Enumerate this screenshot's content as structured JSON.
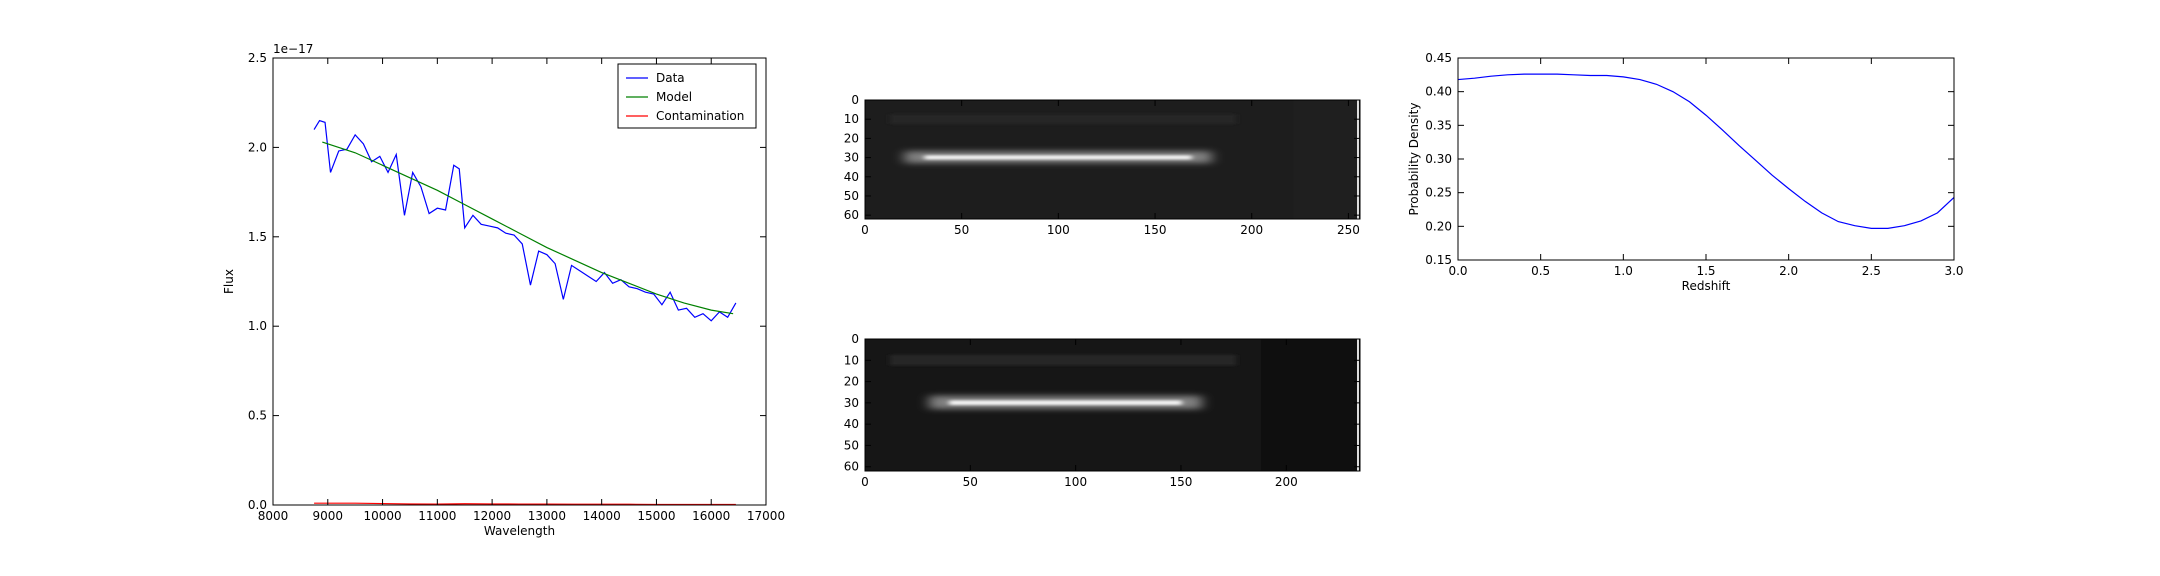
{
  "chart_data": [
    {
      "type": "line",
      "xlabel": "Wavelength",
      "ylabel": "Flux",
      "offset_text": "1e−17",
      "xlim": [
        8000,
        17000
      ],
      "xticks": [
        8000,
        9000,
        10000,
        11000,
        12000,
        13000,
        14000,
        15000,
        16000,
        17000
      ],
      "ylim": [
        0,
        2.5
      ],
      "yticks": [
        {
          "value": 0,
          "label": "0.0"
        },
        0.5,
        {
          "value": 1,
          "label": "1.0"
        },
        1.5,
        {
          "value": 2,
          "label": "2.0"
        },
        2.5
      ],
      "legend": "upper right",
      "series": [
        {
          "name": "Data",
          "color": "#0000ff",
          "x": [
            8750,
            8850,
            8950,
            9050,
            9200,
            9350,
            9500,
            9650,
            9800,
            9950,
            10100,
            10250,
            10400,
            10550,
            10700,
            10850,
            11000,
            11150,
            11300,
            11400,
            11500,
            11650,
            11800,
            11950,
            12100,
            12250,
            12400,
            12550,
            12700,
            12850,
            13000,
            13150,
            13300,
            13450,
            13600,
            13750,
            13900,
            14050,
            14200,
            14350,
            14500,
            14650,
            14800,
            14950,
            15100,
            15250,
            15400,
            15550,
            15700,
            15850,
            16000,
            16150,
            16300,
            16450
          ],
          "values": [
            2.1,
            2.15,
            2.14,
            1.86,
            1.98,
            1.99,
            2.07,
            2.02,
            1.92,
            1.95,
            1.86,
            1.96,
            1.62,
            1.86,
            1.78,
            1.63,
            1.66,
            1.65,
            1.9,
            1.88,
            1.55,
            1.62,
            1.57,
            1.56,
            1.55,
            1.52,
            1.51,
            1.46,
            1.23,
            1.42,
            1.4,
            1.35,
            1.15,
            1.34,
            1.31,
            1.28,
            1.25,
            1.3,
            1.24,
            1.26,
            1.22,
            1.21,
            1.19,
            1.18,
            1.12,
            1.19,
            1.09,
            1.1,
            1.05,
            1.07,
            1.03,
            1.08,
            1.05,
            1.13
          ]
        },
        {
          "name": "Model",
          "color": "#008000",
          "x": [
            8900,
            9500,
            10000,
            10500,
            11000,
            11500,
            12000,
            12500,
            13000,
            13500,
            14000,
            14500,
            15000,
            15500,
            16000,
            16400
          ],
          "values": [
            2.03,
            1.97,
            1.9,
            1.83,
            1.76,
            1.68,
            1.6,
            1.52,
            1.44,
            1.37,
            1.3,
            1.24,
            1.18,
            1.13,
            1.09,
            1.07
          ]
        },
        {
          "name": "Contamination",
          "color": "#ff0000",
          "x": [
            8750,
            9500,
            10000,
            10500,
            11000,
            11500,
            12000,
            12500,
            13000,
            13500,
            14000,
            14500,
            15000,
            15500,
            16000,
            16450
          ],
          "values": [
            0.01,
            0.01,
            0.008,
            0.006,
            0.005,
            0.007,
            0.006,
            0.005,
            0.005,
            0.004,
            0.004,
            0.004,
            0.003,
            0.003,
            0.003,
            0.003
          ]
        }
      ]
    },
    {
      "type": "image",
      "xlim": [
        0,
        256
      ],
      "xticks": [
        0,
        50,
        100,
        150,
        200,
        250
      ],
      "ylim": [
        62,
        0
      ],
      "yticks": [
        0,
        10,
        20,
        30,
        40,
        50,
        60
      ]
    },
    {
      "type": "image",
      "xlim": [
        0,
        235
      ],
      "xticks": [
        0,
        50,
        100,
        150,
        200
      ],
      "ylim": [
        62,
        0
      ],
      "yticks": [
        0,
        10,
        20,
        30,
        40,
        50,
        60
      ]
    },
    {
      "type": "line",
      "xlabel": "Redshift",
      "ylabel": "Probability Density",
      "xlim": [
        0,
        3
      ],
      "xticks": [
        {
          "value": 0,
          "label": "0.0"
        },
        0.5,
        {
          "value": 1,
          "label": "1.0"
        },
        1.5,
        {
          "value": 2,
          "label": "2.0"
        },
        2.5,
        {
          "value": 3,
          "label": "3.0"
        }
      ],
      "ylim": [
        0.15,
        0.45
      ],
      "yticks": [
        0.15,
        {
          "value": 0.2,
          "label": "0.20"
        },
        0.25,
        {
          "value": 0.3,
          "label": "0.30"
        },
        0.35,
        {
          "value": 0.4,
          "label": "0.40"
        },
        0.45
      ],
      "series": [
        {
          "color": "#0000ff",
          "x": [
            0,
            0.1,
            0.2,
            0.3,
            0.4,
            0.5,
            0.6,
            0.7,
            0.8,
            0.9,
            1.0,
            1.1,
            1.2,
            1.3,
            1.4,
            1.5,
            1.6,
            1.7,
            1.8,
            1.9,
            2.0,
            2.1,
            2.2,
            2.3,
            2.4,
            2.5,
            2.6,
            2.7,
            2.8,
            2.9,
            3.0
          ],
          "values": [
            0.418,
            0.42,
            0.423,
            0.425,
            0.426,
            0.426,
            0.426,
            0.425,
            0.424,
            0.424,
            0.422,
            0.418,
            0.411,
            0.4,
            0.385,
            0.365,
            0.343,
            0.32,
            0.298,
            0.276,
            0.256,
            0.237,
            0.22,
            0.207,
            0.201,
            0.197,
            0.197,
            0.201,
            0.208,
            0.22,
            0.243
          ]
        }
      ]
    }
  ]
}
